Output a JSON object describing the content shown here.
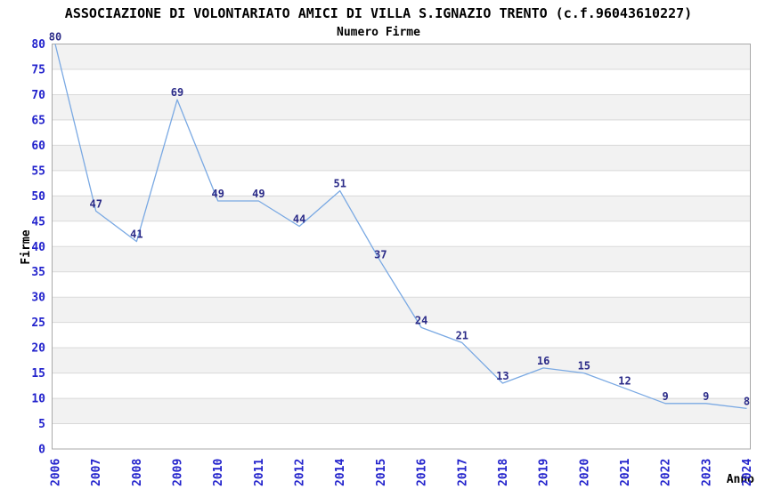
{
  "chart_data": {
    "type": "line",
    "title": "ASSOCIAZIONE DI VOLONTARIATO AMICI DI VILLA S.IGNAZIO TRENTO (c.f.96043610227)",
    "subtitle": "Numero Firme",
    "xlabel": "Anno",
    "ylabel": "Firme",
    "categories": [
      "2006",
      "2007",
      "2008",
      "2009",
      "2010",
      "2011",
      "2012",
      "2014",
      "2015",
      "2016",
      "2017",
      "2018",
      "2019",
      "2020",
      "2021",
      "2022",
      "2023",
      "2024"
    ],
    "values": [
      80,
      47,
      41,
      69,
      49,
      49,
      44,
      51,
      37,
      24,
      21,
      13,
      16,
      15,
      12,
      9,
      9,
      8
    ],
    "ylim": [
      0,
      80
    ],
    "ytick_step": 5,
    "grid": true,
    "banded_background": true,
    "legend": "none",
    "colors": {
      "line": "#7aa9e3",
      "band": "#f2f2f2",
      "gridline": "#d9d9d9",
      "plot_border": "#a9a9a9",
      "tick_label": "#2222cc",
      "point_label": "#2b2b88",
      "title": "#000000",
      "background": "#ffffff"
    }
  }
}
